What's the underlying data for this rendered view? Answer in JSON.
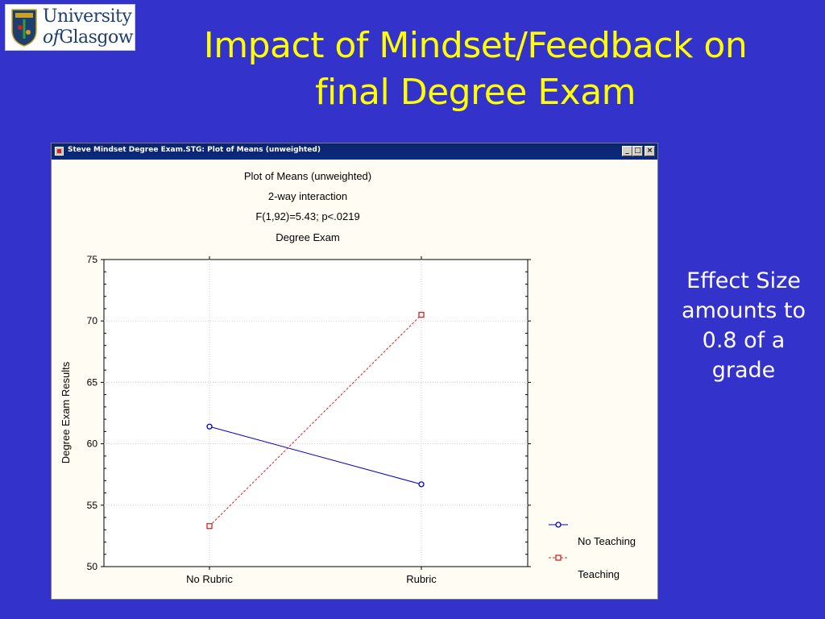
{
  "logo": {
    "line1": "University",
    "line2_prefix": "of",
    "line2_main": "Glasgow"
  },
  "slide": {
    "title_line1": "Impact of Mindset/Feedback on",
    "title_line2": "final Degree Exam",
    "side_note_lines": [
      "Effect Size",
      "amounts to",
      "0.8 of a",
      "grade"
    ]
  },
  "window": {
    "title": "Steve Mindset Degree Exam.STG: Plot of Means (unweighted)",
    "minimize_glyph": "_",
    "maximize_glyph": "□",
    "close_glyph": "×"
  },
  "colors": {
    "background": "#3333cc",
    "title": "#ffff00",
    "no_teaching": "#0000cc",
    "teaching": "#e02020"
  },
  "chart_data": {
    "type": "line",
    "title": "Plot of Means (unweighted)",
    "subtitle_lines": [
      "2-way interaction",
      "F(1,92)=5.43; p<.0219",
      "Degree Exam"
    ],
    "xlabel": "",
    "ylabel": "Degree Exam Results",
    "categories": [
      "No Rubric",
      "Rubric"
    ],
    "ylim": [
      50,
      75
    ],
    "yticks": [
      50,
      55,
      60,
      65,
      70,
      75
    ],
    "grid": true,
    "legend_position": "bottom-right",
    "series": [
      {
        "name": "No Teaching",
        "values": [
          61.4,
          56.7
        ],
        "color": "#0000cc",
        "line_style": "solid",
        "marker": "circle"
      },
      {
        "name": "Teaching",
        "values": [
          53.3,
          70.5
        ],
        "color": "#e02020",
        "line_style": "dashed",
        "marker": "square"
      }
    ]
  }
}
